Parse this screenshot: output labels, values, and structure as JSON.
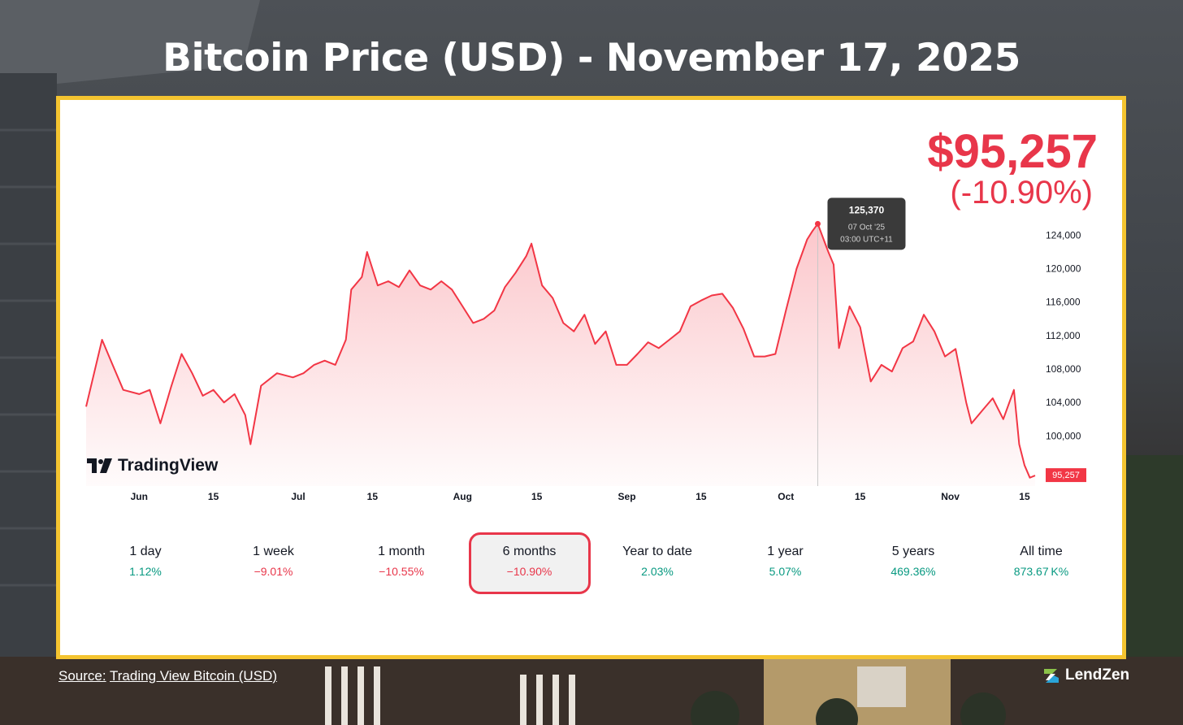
{
  "title": "Bitcoin Price (USD) - November 17, 2025",
  "price": "$95,257",
  "change": "(-10.90%)",
  "branding": {
    "tradingview": "TradingView",
    "lendzen": "LendZen"
  },
  "footer": {
    "source_prefix": "Source:",
    "source_link": "Trading View Bitcoin (USD)"
  },
  "colors": {
    "price_red": "#e8364a",
    "positive_green": "#089981",
    "negative_red": "#e8364a",
    "frame_gold": "#f4c430"
  },
  "tooltip": {
    "value": "125,370",
    "date": "07 Oct '25",
    "time": "03:00 UTC+11"
  },
  "last_price_label": "95,257",
  "periods": [
    {
      "label": "1 day",
      "value": "1.12%",
      "trend": "positive",
      "active": false
    },
    {
      "label": "1 week",
      "value": "−9.01%",
      "trend": "negative",
      "active": false
    },
    {
      "label": "1 month",
      "value": "−10.55%",
      "trend": "negative",
      "active": false
    },
    {
      "label": "6 months",
      "value": "−10.90%",
      "trend": "negative",
      "active": true
    },
    {
      "label": "Year to date",
      "value": "2.03%",
      "trend": "positive",
      "active": false
    },
    {
      "label": "1 year",
      "value": "5.07%",
      "trend": "positive",
      "active": false
    },
    {
      "label": "5 years",
      "value": "469.36%",
      "trend": "positive",
      "active": false
    },
    {
      "label": "All time",
      "value": "873.67 K%",
      "trend": "positive",
      "active": false
    }
  ],
  "chart_data": {
    "type": "area",
    "title": "Bitcoin Price (USD) - November 17, 2025",
    "xlabel": "",
    "ylabel": "",
    "y_ticks": [
      100000,
      104000,
      108000,
      112000,
      116000,
      120000,
      124000
    ],
    "y_tick_labels": [
      "100,000",
      "104,000",
      "108,000",
      "112,000",
      "116,000",
      "120,000",
      "124,000"
    ],
    "ylim": [
      94000,
      125600
    ],
    "x_ticks": [
      {
        "date": "2025-06-01",
        "label": "Jun"
      },
      {
        "date": "2025-06-15",
        "label": "15"
      },
      {
        "date": "2025-07-01",
        "label": "Jul"
      },
      {
        "date": "2025-07-15",
        "label": "15"
      },
      {
        "date": "2025-08-01",
        "label": "Aug"
      },
      {
        "date": "2025-08-15",
        "label": "15"
      },
      {
        "date": "2025-09-01",
        "label": "Sep"
      },
      {
        "date": "2025-09-15",
        "label": "15"
      },
      {
        "date": "2025-10-01",
        "label": "Oct"
      },
      {
        "date": "2025-10-15",
        "label": "15"
      },
      {
        "date": "2025-11-01",
        "label": "Nov"
      },
      {
        "date": "2025-11-15",
        "label": "15"
      }
    ],
    "xlim": [
      "2025-05-22",
      "2025-11-17"
    ],
    "grid": false,
    "series": [
      {
        "x": [
          "2025-05-22",
          "2025-05-25",
          "2025-05-27",
          "2025-05-29",
          "2025-06-01",
          "2025-06-03",
          "2025-06-05",
          "2025-06-07",
          "2025-06-09",
          "2025-06-11",
          "2025-06-13",
          "2025-06-15",
          "2025-06-17",
          "2025-06-19",
          "2025-06-21",
          "2025-06-22",
          "2025-06-24",
          "2025-06-27",
          "2025-06-30",
          "2025-07-02",
          "2025-07-04",
          "2025-07-06",
          "2025-07-08",
          "2025-07-10",
          "2025-07-11",
          "2025-07-13",
          "2025-07-14",
          "2025-07-16",
          "2025-07-18",
          "2025-07-20",
          "2025-07-22",
          "2025-07-24",
          "2025-07-26",
          "2025-07-28",
          "2025-07-30",
          "2025-08-01",
          "2025-08-03",
          "2025-08-05",
          "2025-08-07",
          "2025-08-09",
          "2025-08-11",
          "2025-08-13",
          "2025-08-14",
          "2025-08-16",
          "2025-08-18",
          "2025-08-20",
          "2025-08-22",
          "2025-08-24",
          "2025-08-26",
          "2025-08-28",
          "2025-08-30",
          "2025-09-01",
          "2025-09-03",
          "2025-09-05",
          "2025-09-07",
          "2025-09-09",
          "2025-09-11",
          "2025-09-13",
          "2025-09-15",
          "2025-09-17",
          "2025-09-19",
          "2025-09-21",
          "2025-09-23",
          "2025-09-25",
          "2025-09-27",
          "2025-09-29",
          "2025-10-01",
          "2025-10-03",
          "2025-10-05",
          "2025-10-06",
          "2025-10-07",
          "2025-10-09",
          "2025-10-10",
          "2025-10-11",
          "2025-10-13",
          "2025-10-15",
          "2025-10-17",
          "2025-10-19",
          "2025-10-21",
          "2025-10-23",
          "2025-10-25",
          "2025-10-27",
          "2025-10-29",
          "2025-10-31",
          "2025-11-02",
          "2025-11-04",
          "2025-11-05",
          "2025-11-07",
          "2025-11-09",
          "2025-11-11",
          "2025-11-13",
          "2025-11-14",
          "2025-11-15",
          "2025-11-16",
          "2025-11-17"
        ],
        "values": [
          103500,
          111500,
          108500,
          105500,
          105000,
          105500,
          101500,
          105800,
          109800,
          107500,
          104800,
          105500,
          104000,
          105000,
          102500,
          99000,
          106000,
          107500,
          107000,
          107500,
          108500,
          109000,
          108500,
          111500,
          117500,
          119000,
          122000,
          118000,
          118500,
          117800,
          119800,
          118000,
          117500,
          118500,
          117500,
          115500,
          113500,
          114000,
          115000,
          117800,
          119500,
          121500,
          123000,
          118000,
          116500,
          113500,
          112500,
          114500,
          111000,
          112500,
          108500,
          108500,
          109800,
          111200,
          110500,
          111500,
          112500,
          115500,
          116200,
          116800,
          117000,
          115300,
          112800,
          109500,
          109500,
          109800,
          115000,
          120000,
          123500,
          124500,
          125370,
          122000,
          120500,
          110500,
          115500,
          113000,
          106500,
          108500,
          107700,
          110500,
          111300,
          114500,
          112500,
          109500,
          110400,
          104000,
          101500,
          103000,
          104500,
          102000,
          105500,
          99000,
          96500,
          95000,
          95257
        ]
      }
    ]
  }
}
